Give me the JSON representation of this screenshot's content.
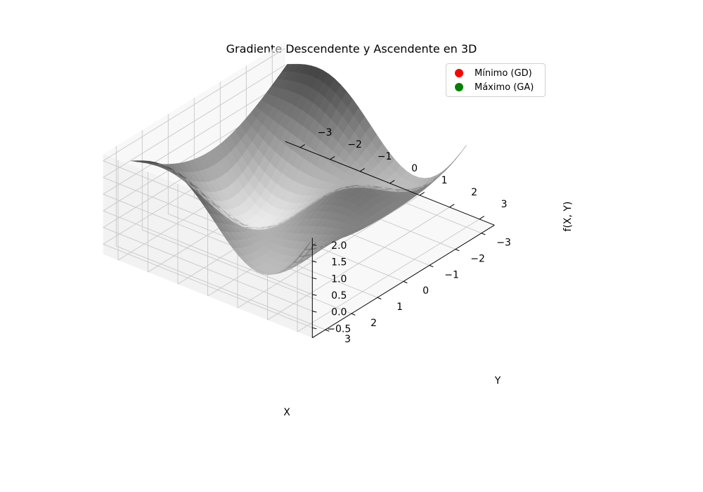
{
  "chart_data": {
    "type": "surface3d",
    "title": "Gradiente Descendente y Ascendente en 3D",
    "xlabel": "X",
    "ylabel": "Y",
    "zlabel": "f(X, Y)",
    "xlim": [
      -3.5,
      3.5
    ],
    "ylim": [
      -3.5,
      3.5
    ],
    "zlim": [
      -0.8,
      2.2
    ],
    "x_ticks": [
      -3,
      -2,
      -1,
      0,
      1,
      2,
      3
    ],
    "x_tick_labels": [
      "−3",
      "−2",
      "−1",
      "0",
      "1",
      "2",
      "3"
    ],
    "y_ticks": [
      -3,
      -2,
      -1,
      0,
      1,
      2,
      3
    ],
    "y_tick_labels": [
      "−3",
      "−2",
      "−1",
      "0",
      "1",
      "2",
      "3"
    ],
    "z_ticks": [
      -0.5,
      0.0,
      0.5,
      1.0,
      1.5,
      2.0
    ],
    "z_tick_labels": [
      "−0.5",
      "0.0",
      "0.5",
      "1.0",
      "1.5",
      "2.0"
    ],
    "surface": {
      "function": "sin(X)*cos(Y) + 0.1*(X^2+Y^2)",
      "domain_x": [
        -3,
        3
      ],
      "domain_y": [
        -3,
        3
      ],
      "colormap": "gray"
    },
    "grid": true,
    "legend": {
      "placement": "top-right",
      "entries": [
        {
          "label": "Mínimo (GD)",
          "color": "#ff0000"
        },
        {
          "label": "Máximo (GA)",
          "color": "#008000"
        }
      ]
    }
  }
}
